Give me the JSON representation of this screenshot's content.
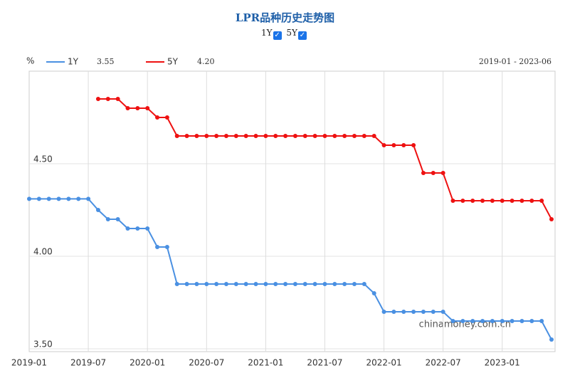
{
  "chart_data": {
    "type": "line",
    "title": "LPR品种历史走势图",
    "unit": "%",
    "range_label": "2019-01 - 2023-06",
    "watermark": "chinamoney.com.cn",
    "categories": [
      "2019-01",
      null,
      null,
      null,
      null,
      null,
      "2019-07",
      null,
      null,
      null,
      null,
      null,
      "2020-01",
      null,
      null,
      null,
      null,
      null,
      "2020-07",
      null,
      null,
      null,
      null,
      null,
      "2021-01",
      null,
      null,
      null,
      null,
      null,
      "2021-07",
      null,
      null,
      null,
      null,
      null,
      "2022-01",
      null,
      null,
      null,
      null,
      null,
      "2022-07",
      null,
      null,
      null,
      null,
      null,
      "2023-01",
      null,
      null,
      null,
      null,
      null
    ],
    "series": [
      {
        "name": "1Y",
        "color": "#4a90e2",
        "latest": "3.55",
        "values": [
          4.31,
          4.31,
          4.31,
          4.31,
          4.31,
          4.31,
          4.31,
          4.25,
          4.2,
          4.2,
          4.15,
          4.15,
          4.15,
          4.05,
          4.05,
          3.85,
          3.85,
          3.85,
          3.85,
          3.85,
          3.85,
          3.85,
          3.85,
          3.85,
          3.85,
          3.85,
          3.85,
          3.85,
          3.85,
          3.85,
          3.85,
          3.85,
          3.85,
          3.85,
          3.85,
          3.8,
          3.7,
          3.7,
          3.7,
          3.7,
          3.7,
          3.7,
          3.7,
          3.65,
          3.65,
          3.65,
          3.65,
          3.65,
          3.65,
          3.65,
          3.65,
          3.65,
          3.65,
          3.55
        ]
      },
      {
        "name": "5Y",
        "color": "#ee1111",
        "latest": "4.20",
        "values": [
          null,
          null,
          null,
          null,
          null,
          null,
          null,
          4.85,
          4.85,
          4.85,
          4.8,
          4.8,
          4.8,
          4.75,
          4.75,
          4.65,
          4.65,
          4.65,
          4.65,
          4.65,
          4.65,
          4.65,
          4.65,
          4.65,
          4.65,
          4.65,
          4.65,
          4.65,
          4.65,
          4.65,
          4.65,
          4.65,
          4.65,
          4.65,
          4.65,
          4.65,
          4.6,
          4.6,
          4.6,
          4.6,
          4.45,
          4.45,
          4.45,
          4.3,
          4.3,
          4.3,
          4.3,
          4.3,
          4.3,
          4.3,
          4.3,
          4.3,
          4.3,
          4.2
        ]
      }
    ],
    "ylim": [
      3.5,
      5.0
    ],
    "yticks": [
      {
        "value": 3.5,
        "label": "3.50"
      },
      {
        "value": 4.0,
        "label": "4.00"
      },
      {
        "value": 4.5,
        "label": "4.50"
      }
    ],
    "grid": true
  }
}
